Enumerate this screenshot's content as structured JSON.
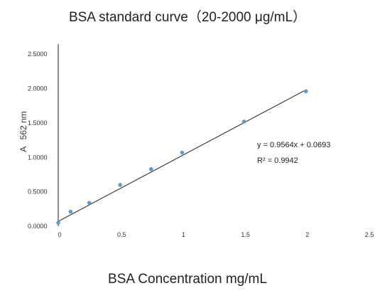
{
  "chart_data": {
    "type": "scatter",
    "title": "BSA standard curve（20-2000 μg/mL）",
    "xlabel": "BSA Concentration mg/mL",
    "ylabel": "A   562 nm",
    "xlim": [
      0,
      2.5
    ],
    "ylim": [
      0,
      2.75
    ],
    "x_ticks": [
      "0",
      "0.5",
      "1",
      "1.5",
      "2",
      "2.5"
    ],
    "y_ticks": [
      "0.0000",
      "0.5000",
      "1.0000",
      "1.5000",
      "2.0000",
      "2.5000"
    ],
    "series": [
      {
        "x": [
          0,
          0.1,
          0.25,
          0.5,
          0.75,
          1.0,
          1.5,
          2.0
        ],
        "y": [
          0.05,
          0.21,
          0.34,
          0.6,
          0.83,
          1.07,
          1.52,
          1.96
        ],
        "color": "#5b9bd5"
      }
    ],
    "trendline": {
      "slope": 0.9564,
      "intercept": 0.0693,
      "color": "#333333",
      "equation": "y = 0.9564x + 0.0693",
      "r_squared": "R² = 0.9942"
    },
    "grid": false
  }
}
